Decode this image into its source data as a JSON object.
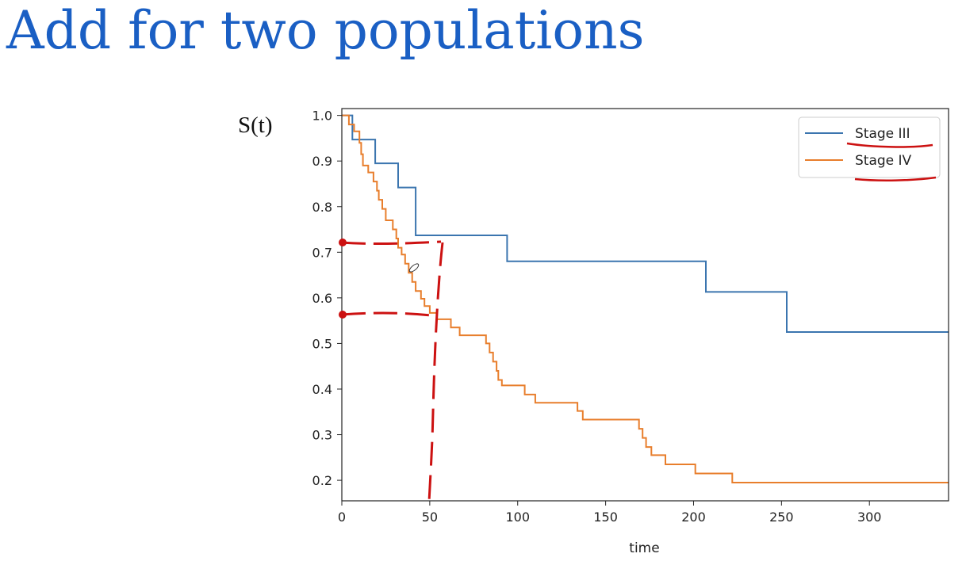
{
  "slide": {
    "title": "Add for two populations"
  },
  "chart_data": {
    "type": "line",
    "step": true,
    "title": "",
    "ylabel": "S(t)",
    "xlabel": "time",
    "xlim": [
      0,
      345
    ],
    "ylim": [
      0.155,
      1.015
    ],
    "xticks": [
      0,
      50,
      100,
      150,
      200,
      250,
      300
    ],
    "yticks": [
      0.2,
      0.3,
      0.4,
      0.5,
      0.6,
      0.7,
      0.8,
      0.9,
      1.0
    ],
    "grid": false,
    "legend_position": "top-right",
    "series": [
      {
        "name": "Stage III",
        "color": "#3b75af",
        "points": [
          [
            0,
            1.0
          ],
          [
            6,
            1.0
          ],
          [
            6,
            0.947
          ],
          [
            19,
            0.947
          ],
          [
            19,
            0.895
          ],
          [
            32,
            0.895
          ],
          [
            32,
            0.842
          ],
          [
            42,
            0.842
          ],
          [
            42,
            0.737
          ],
          [
            94,
            0.737
          ],
          [
            94,
            0.68
          ],
          [
            207,
            0.68
          ],
          [
            207,
            0.613
          ],
          [
            253,
            0.613
          ],
          [
            253,
            0.525
          ],
          [
            345,
            0.525
          ]
        ]
      },
      {
        "name": "Stage IV",
        "color": "#e87e2c",
        "points": [
          [
            0,
            1.0
          ],
          [
            4,
            1.0
          ],
          [
            4,
            0.98
          ],
          [
            7,
            0.98
          ],
          [
            7,
            0.965
          ],
          [
            10,
            0.965
          ],
          [
            10,
            0.94
          ],
          [
            11,
            0.94
          ],
          [
            11,
            0.915
          ],
          [
            12,
            0.915
          ],
          [
            12,
            0.89
          ],
          [
            15,
            0.89
          ],
          [
            15,
            0.875
          ],
          [
            18,
            0.875
          ],
          [
            18,
            0.855
          ],
          [
            20,
            0.855
          ],
          [
            20,
            0.835
          ],
          [
            21,
            0.835
          ],
          [
            21,
            0.815
          ],
          [
            23,
            0.815
          ],
          [
            23,
            0.795
          ],
          [
            25,
            0.795
          ],
          [
            25,
            0.77
          ],
          [
            29,
            0.77
          ],
          [
            29,
            0.75
          ],
          [
            31,
            0.75
          ],
          [
            31,
            0.73
          ],
          [
            32,
            0.73
          ],
          [
            32,
            0.71
          ],
          [
            34,
            0.71
          ],
          [
            34,
            0.695
          ],
          [
            36,
            0.695
          ],
          [
            36,
            0.675
          ],
          [
            38,
            0.675
          ],
          [
            38,
            0.655
          ],
          [
            40,
            0.655
          ],
          [
            40,
            0.635
          ],
          [
            42,
            0.635
          ],
          [
            42,
            0.615
          ],
          [
            45,
            0.615
          ],
          [
            45,
            0.598
          ],
          [
            47,
            0.598
          ],
          [
            47,
            0.582
          ],
          [
            50,
            0.582
          ],
          [
            50,
            0.567
          ],
          [
            54,
            0.567
          ],
          [
            54,
            0.553
          ],
          [
            62,
            0.553
          ],
          [
            62,
            0.535
          ],
          [
            67,
            0.535
          ],
          [
            67,
            0.518
          ],
          [
            82,
            0.518
          ],
          [
            82,
            0.5
          ],
          [
            84,
            0.5
          ],
          [
            84,
            0.48
          ],
          [
            86,
            0.48
          ],
          [
            86,
            0.46
          ],
          [
            88,
            0.46
          ],
          [
            88,
            0.44
          ],
          [
            89,
            0.44
          ],
          [
            89,
            0.42
          ],
          [
            91,
            0.42
          ],
          [
            91,
            0.408
          ],
          [
            104,
            0.408
          ],
          [
            104,
            0.388
          ],
          [
            110,
            0.388
          ],
          [
            110,
            0.37
          ],
          [
            134,
            0.37
          ],
          [
            134,
            0.352
          ],
          [
            137,
            0.352
          ],
          [
            137,
            0.333
          ],
          [
            169,
            0.333
          ],
          [
            169,
            0.313
          ],
          [
            171,
            0.313
          ],
          [
            171,
            0.293
          ],
          [
            173,
            0.293
          ],
          [
            173,
            0.273
          ],
          [
            176,
            0.273
          ],
          [
            176,
            0.255
          ],
          [
            184,
            0.255
          ],
          [
            184,
            0.235
          ],
          [
            201,
            0.235
          ],
          [
            201,
            0.215
          ],
          [
            222,
            0.215
          ],
          [
            222,
            0.195
          ],
          [
            345,
            0.195
          ]
        ]
      }
    ]
  }
}
